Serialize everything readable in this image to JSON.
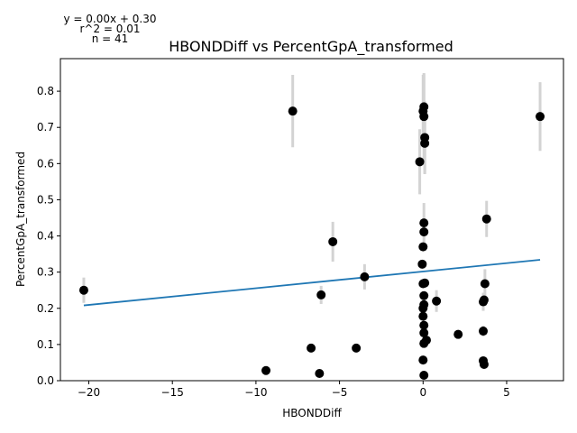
{
  "chart_data": {
    "type": "scatter",
    "title": "HBONDDiff vs PercentGpA_transformed",
    "xlabel": "HBONDDiff",
    "ylabel": "PercentGpA_transformed",
    "xlim": [
      -21.7,
      8.4
    ],
    "ylim": [
      0,
      0.89
    ],
    "xticks": [
      -20,
      -15,
      -10,
      -5,
      0,
      5
    ],
    "xtick_labels": [
      "−20",
      "−15",
      "−10",
      "−5",
      "0",
      "5"
    ],
    "yticks": [
      0.0,
      0.1,
      0.2,
      0.3,
      0.4,
      0.5,
      0.6,
      0.7,
      0.8
    ],
    "ytick_labels": [
      "0.0",
      "0.1",
      "0.2",
      "0.3",
      "0.4",
      "0.5",
      "0.6",
      "0.7",
      "0.8"
    ],
    "grid": false,
    "annotation_lines": [
      "y = 0.00x + 0.30",
      "r^2 = 0.01",
      "n = 41"
    ],
    "fit_line": {
      "x": [
        -20.3,
        7.0
      ],
      "y": [
        0.208,
        0.334
      ]
    },
    "points": [
      {
        "x": -20.3,
        "y": 0.25,
        "err": 0.035
      },
      {
        "x": -9.4,
        "y": 0.028,
        "err": 0
      },
      {
        "x": -7.8,
        "y": 0.745,
        "err": 0.1
      },
      {
        "x": -6.7,
        "y": 0.09,
        "err": 0
      },
      {
        "x": -6.2,
        "y": 0.02,
        "err": 0
      },
      {
        "x": -6.1,
        "y": 0.237,
        "err": 0.025
      },
      {
        "x": -5.4,
        "y": 0.384,
        "err": 0.055
      },
      {
        "x": -4.0,
        "y": 0.09,
        "err": 0
      },
      {
        "x": -3.5,
        "y": 0.287,
        "err": 0.035
      },
      {
        "x": -0.2,
        "y": 0.605,
        "err": 0.09
      },
      {
        "x": 0.0,
        "y": 0.745,
        "err": 0.1
      },
      {
        "x": 0.05,
        "y": 0.73,
        "err": 0.12
      },
      {
        "x": 0.05,
        "y": 0.757,
        "err": 0.09
      },
      {
        "x": 0.1,
        "y": 0.672,
        "err": 0.1
      },
      {
        "x": 0.1,
        "y": 0.656,
        "err": 0.085
      },
      {
        "x": 0.05,
        "y": 0.436,
        "err": 0.055
      },
      {
        "x": 0.05,
        "y": 0.411,
        "err": 0
      },
      {
        "x": 0.0,
        "y": 0.37,
        "err": 0
      },
      {
        "x": -0.05,
        "y": 0.322,
        "err": 0
      },
      {
        "x": 0.0,
        "y": 0.268,
        "err": 0
      },
      {
        "x": 0.1,
        "y": 0.27,
        "err": 0
      },
      {
        "x": 0.05,
        "y": 0.235,
        "err": 0
      },
      {
        "x": 0.05,
        "y": 0.21,
        "err": 0
      },
      {
        "x": 0.0,
        "y": 0.2,
        "err": 0
      },
      {
        "x": 0.0,
        "y": 0.178,
        "err": 0
      },
      {
        "x": 0.05,
        "y": 0.153,
        "err": 0
      },
      {
        "x": 0.05,
        "y": 0.132,
        "err": 0
      },
      {
        "x": 0.2,
        "y": 0.112,
        "err": 0
      },
      {
        "x": 0.05,
        "y": 0.103,
        "err": 0
      },
      {
        "x": 0.0,
        "y": 0.057,
        "err": 0
      },
      {
        "x": 0.05,
        "y": 0.015,
        "err": 0
      },
      {
        "x": 0.8,
        "y": 0.22,
        "err": 0.03
      },
      {
        "x": 2.1,
        "y": 0.128,
        "err": 0
      },
      {
        "x": 3.6,
        "y": 0.218,
        "err": 0.025
      },
      {
        "x": 3.65,
        "y": 0.223,
        "err": 0
      },
      {
        "x": 3.6,
        "y": 0.137,
        "err": 0.015
      },
      {
        "x": 3.7,
        "y": 0.268,
        "err": 0.04
      },
      {
        "x": 3.6,
        "y": 0.055,
        "err": 0
      },
      {
        "x": 3.65,
        "y": 0.045,
        "err": 0
      },
      {
        "x": 3.8,
        "y": 0.447,
        "err": 0.05
      },
      {
        "x": 7.0,
        "y": 0.73,
        "err": 0.095
      }
    ],
    "colors": {
      "points": "#000000",
      "fit_line": "#1f77b4",
      "error_bars": "#d3d3d3"
    }
  }
}
